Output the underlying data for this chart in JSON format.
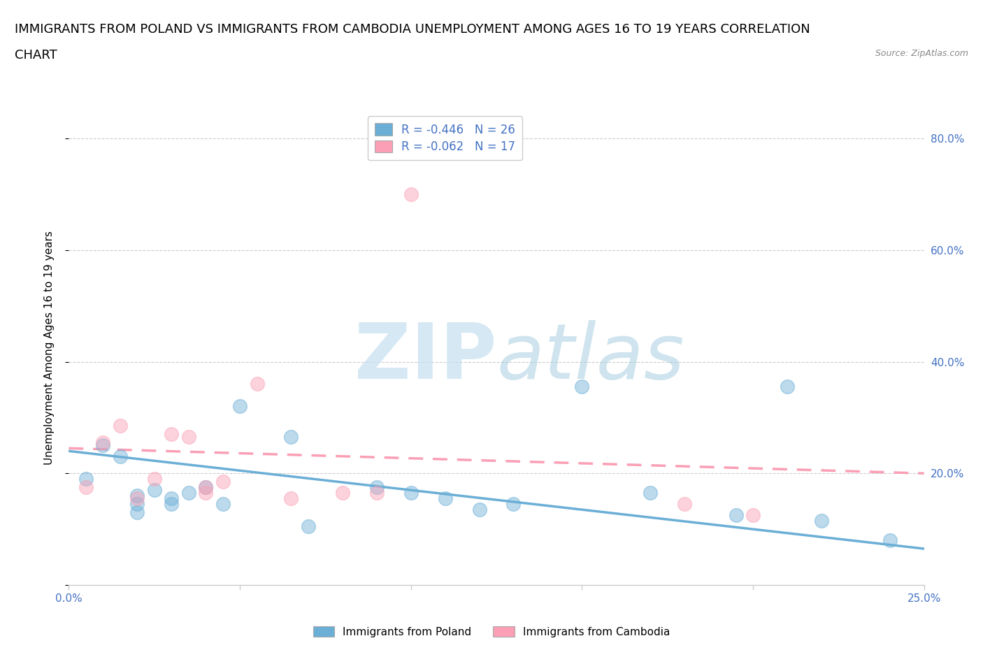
{
  "title_line1": "IMMIGRANTS FROM POLAND VS IMMIGRANTS FROM CAMBODIA UNEMPLOYMENT AMONG AGES 16 TO 19 YEARS CORRELATION",
  "title_line2": "CHART",
  "source": "Source: ZipAtlas.com",
  "ylabel": "Unemployment Among Ages 16 to 19 years",
  "xlim": [
    0.0,
    0.25
  ],
  "ylim": [
    0.0,
    0.85
  ],
  "xticks": [
    0.0,
    0.05,
    0.1,
    0.15,
    0.2,
    0.25
  ],
  "yticks": [
    0.0,
    0.2,
    0.4,
    0.6,
    0.8
  ],
  "ytick_labels_right": [
    "",
    "20.0%",
    "40.0%",
    "60.0%",
    "80.0%"
  ],
  "xtick_labels": [
    "0.0%",
    "",
    "",
    "",
    "",
    "25.0%"
  ],
  "poland_color": "#6baed6",
  "cambodia_color": "#fa9fb5",
  "poland_R": -0.446,
  "poland_N": 26,
  "cambodia_R": -0.062,
  "cambodia_N": 17,
  "poland_scatter_x": [
    0.005,
    0.01,
    0.015,
    0.02,
    0.02,
    0.02,
    0.025,
    0.03,
    0.03,
    0.035,
    0.04,
    0.045,
    0.05,
    0.065,
    0.07,
    0.09,
    0.1,
    0.11,
    0.12,
    0.13,
    0.15,
    0.17,
    0.195,
    0.21,
    0.22,
    0.24
  ],
  "poland_scatter_y": [
    0.19,
    0.25,
    0.23,
    0.16,
    0.145,
    0.13,
    0.17,
    0.155,
    0.145,
    0.165,
    0.175,
    0.145,
    0.32,
    0.265,
    0.105,
    0.175,
    0.165,
    0.155,
    0.135,
    0.145,
    0.355,
    0.165,
    0.125,
    0.355,
    0.115,
    0.08
  ],
  "cambodia_scatter_x": [
    0.005,
    0.01,
    0.015,
    0.02,
    0.025,
    0.03,
    0.035,
    0.04,
    0.04,
    0.045,
    0.055,
    0.065,
    0.08,
    0.09,
    0.1,
    0.18,
    0.2
  ],
  "cambodia_scatter_y": [
    0.175,
    0.255,
    0.285,
    0.155,
    0.19,
    0.27,
    0.265,
    0.165,
    0.175,
    0.185,
    0.36,
    0.155,
    0.165,
    0.165,
    0.7,
    0.145,
    0.125
  ],
  "poland_line_x": [
    0.0,
    0.25
  ],
  "poland_line_y": [
    0.24,
    0.065
  ],
  "cambodia_line_x": [
    0.0,
    0.25
  ],
  "cambodia_line_y": [
    0.245,
    0.2
  ],
  "watermark_zip": "ZIP",
  "watermark_atlas": "atlas",
  "background_color": "#ffffff",
  "grid_color": "#cccccc",
  "axis_color": "#4472c4",
  "title_fontsize": 13,
  "label_fontsize": 11,
  "tick_fontsize": 11,
  "legend_fontsize": 12,
  "marker_size": 200,
  "marker_alpha": 0.45,
  "marker_edgewidth": 1.2
}
